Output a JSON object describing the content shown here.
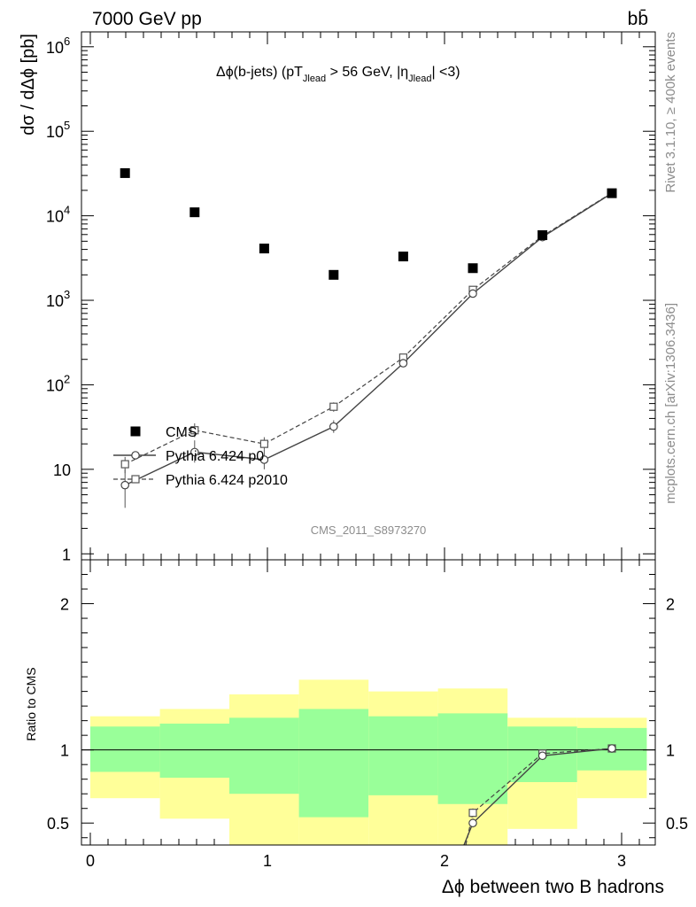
{
  "header": {
    "left": "7000 GeV pp",
    "right": "bb̄"
  },
  "side_labels": {
    "top": "Rivet 3.1.10, ≥ 400k events",
    "bottom": "mcplots.cern.ch [arXiv:1306.3436]"
  },
  "watermark": "CMS_2011_S8973270",
  "chart_data": [
    {
      "type": "scatter",
      "title": "Δϕ(b-jets) (pT_Jlead > 56 GeV, |η_Jlead| <3)",
      "title_parts": {
        "a": "Δϕ(b-jets) (pT",
        "sub1": "Jlead",
        "b": " >  56 GeV, |η",
        "sub2": "Jlead",
        "c": "| <3)"
      },
      "ylabel": "dσ / dΔϕ [pb]",
      "xlabel": "",
      "yscale": "log",
      "ylim": [
        0.85,
        1500000
      ],
      "xlim": [
        -0.05,
        3.19
      ],
      "y_ticks": [
        {
          "v": 1,
          "label": "1"
        },
        {
          "v": 10,
          "label": "10"
        },
        {
          "v": 100,
          "label": "10",
          "exp": "2"
        },
        {
          "v": 1000,
          "label": "10",
          "exp": "3"
        },
        {
          "v": 10000,
          "label": "10",
          "exp": "4"
        },
        {
          "v": 100000,
          "label": "10",
          "exp": "5"
        },
        {
          "v": 1000000,
          "label": "10",
          "exp": "6"
        }
      ],
      "legend_entries": [
        "CMS",
        "Pythia 6.424 p0",
        "Pythia 6.424 p2010"
      ],
      "series": [
        {
          "name": "CMS",
          "x": [
            0.196,
            0.589,
            0.982,
            1.374,
            1.767,
            2.16,
            2.553,
            2.945
          ],
          "y": [
            32000,
            11000,
            4100,
            2000,
            3300,
            2400,
            5900,
            18500
          ]
        },
        {
          "name": "Pythia 6.424 p0",
          "x": [
            0.196,
            0.589,
            0.982,
            1.374,
            1.767,
            2.16,
            2.553,
            2.945
          ],
          "y": [
            6.5,
            16,
            13,
            32,
            180,
            1200,
            5600,
            18500
          ],
          "err": [
            [
              3.5,
              10
            ],
            [
              12,
              22
            ],
            [
              10,
              17
            ],
            [
              27,
              38
            ],
            [
              170,
              190
            ],
            [
              1140,
              1260
            ],
            [
              5400,
              5800
            ],
            [
              18000,
              19000
            ]
          ]
        },
        {
          "name": "Pythia 6.424 p2010",
          "x": [
            0.196,
            0.589,
            0.982,
            1.374,
            1.767,
            2.16,
            2.553,
            2.945
          ],
          "y": [
            11.5,
            29,
            20,
            55,
            210,
            1330,
            5750,
            18700
          ],
          "err": [
            [
              9,
              14
            ],
            [
              24,
              35
            ],
            [
              17,
              24
            ],
            [
              48,
              62
            ],
            [
              198,
              222
            ],
            [
              1270,
              1390
            ],
            [
              5550,
              5950
            ],
            [
              18200,
              19200
            ]
          ]
        }
      ]
    },
    {
      "type": "line",
      "ylabel": "Ratio to CMS",
      "xlabel": "Δϕ between two B hadrons",
      "ylim": [
        0.35,
        2.3
      ],
      "xlim": [
        -0.05,
        3.19
      ],
      "x_ticks": [
        0,
        1,
        2,
        3
      ],
      "y_ticks": [
        0.5,
        1,
        2
      ],
      "bands": {
        "edges": [
          0,
          0.393,
          0.785,
          1.178,
          1.571,
          1.963,
          2.356,
          2.749,
          3.142
        ],
        "green_lo": [
          0.85,
          0.81,
          0.7,
          0.54,
          0.69,
          0.63,
          0.78,
          0.86
        ],
        "green_hi": [
          1.16,
          1.18,
          1.22,
          1.28,
          1.23,
          1.25,
          1.16,
          1.15
        ],
        "yellow_lo": [
          0.67,
          0.53,
          0.31,
          0.3,
          0.3,
          0.3,
          0.46,
          0.67
        ],
        "yellow_hi": [
          1.23,
          1.28,
          1.38,
          1.48,
          1.4,
          1.42,
          1.22,
          1.22
        ]
      },
      "series": [
        {
          "name": "Pythia 6.424 p0",
          "x": [
            2.16,
            2.553,
            2.945
          ],
          "y": [
            0.5,
            0.96,
            1.01
          ],
          "err": [
            [
              0.47,
              0.53
            ],
            [
              0.95,
              0.97
            ],
            [
              1.0,
              1.02
            ]
          ]
        },
        {
          "name": "Pythia 6.424 p2010",
          "x": [
            2.16,
            2.553,
            2.945
          ],
          "y": [
            0.57,
            0.975,
            1.01
          ],
          "err": [
            [
              0.54,
              0.6
            ],
            [
              0.965,
              0.985
            ],
            [
              1.0,
              1.02
            ]
          ]
        }
      ]
    }
  ]
}
